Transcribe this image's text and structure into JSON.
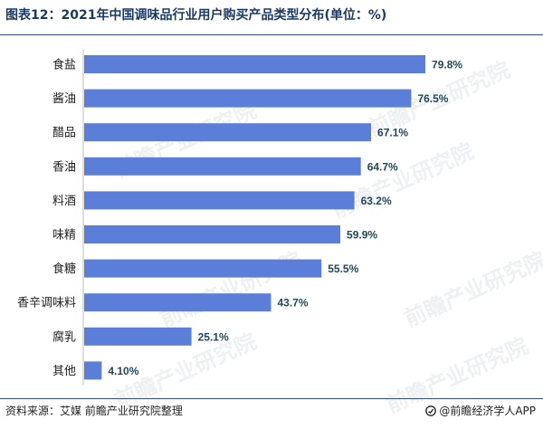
{
  "title": "图表12：2021年中国调味品行业用户购买产品类型分布(单位：%)",
  "source": "资料来源：艾媒 前瞻产业研究院整理",
  "brand": "@前瞻经济学人APP",
  "watermark": "前瞻产业研究院",
  "colors": {
    "bar": "#5b7fd8",
    "label": "#1f4a5a",
    "title": "#1b3a63"
  },
  "chart_data": {
    "type": "bar",
    "orientation": "horizontal",
    "title": "图表12：2021年中国调味品行业用户购买产品类型分布(单位：%)",
    "xlabel": "",
    "ylabel": "",
    "xlim": [
      0,
      80
    ],
    "grid": false,
    "categories": [
      "食盐",
      "酱油",
      "醋品",
      "香油",
      "料酒",
      "味精",
      "食糖",
      "香辛调味料",
      "腐乳",
      "其他"
    ],
    "values": [
      79.8,
      76.5,
      67.1,
      64.7,
      63.2,
      59.9,
      55.5,
      43.7,
      25.1,
      4.1
    ],
    "labels": [
      "79.8%",
      "76.5%",
      "67.1%",
      "64.7%",
      "63.2%",
      "59.9%",
      "55.5%",
      "43.7%",
      "25.1%",
      "4.10%"
    ]
  }
}
